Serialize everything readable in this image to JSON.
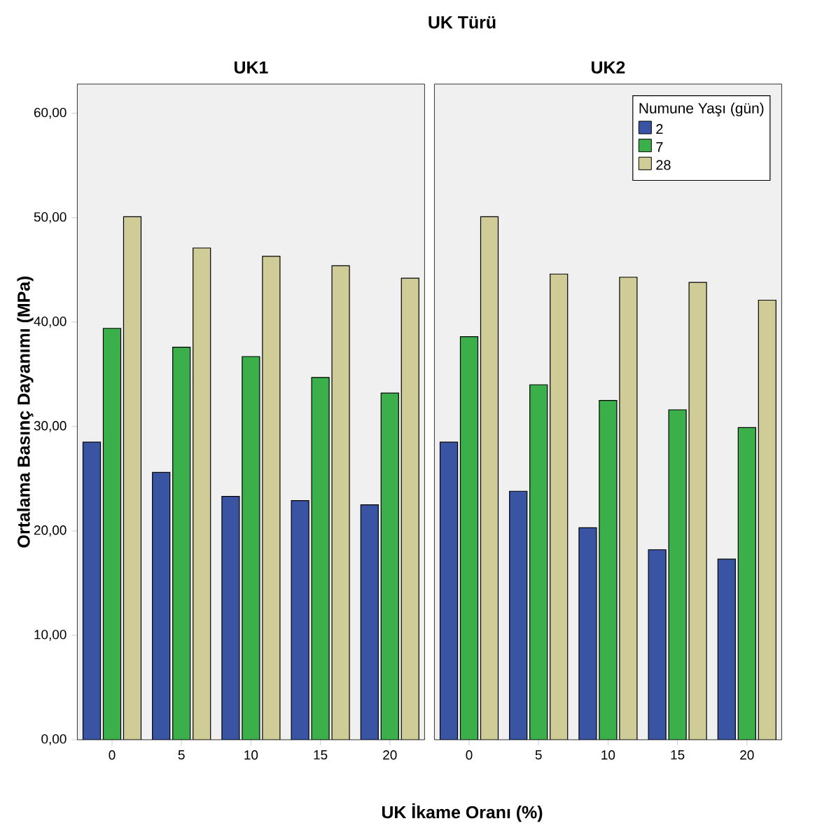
{
  "chart_data": [
    {
      "type": "bar",
      "title": "UK1",
      "annotations": [
        "UK Türü"
      ],
      "xlabel": "UK İkame Oranı (%)",
      "ylabel": "Ortalama Basınç Dayanımı (MPa)",
      "categories": [
        "0",
        "5",
        "10",
        "15",
        "20"
      ],
      "series": [
        {
          "color": "#3a54a4",
          "values": [
            28.5,
            25.6,
            23.3,
            22.9,
            22.5
          ]
        },
        {
          "color": "#3bb04a",
          "values": [
            39.4,
            37.6,
            36.7,
            34.7,
            33.2
          ]
        },
        {
          "color": "#d0cc98",
          "values": [
            50.1,
            47.1,
            46.3,
            45.4,
            44.2
          ]
        }
      ],
      "ylim": [
        0,
        62.8
      ],
      "yticks": [
        {
          "value": 0,
          "label": "0,00"
        },
        {
          "value": 10,
          "label": "10,00"
        },
        {
          "value": 20,
          "label": "20,00"
        },
        {
          "value": 30,
          "label": "30,00"
        },
        {
          "value": 40,
          "label": "40,00"
        },
        {
          "value": 50,
          "label": "50,00"
        },
        {
          "value": 60,
          "label": "60,00"
        }
      ],
      "legend": false
    },
    {
      "type": "bar",
      "title": "UK2",
      "legend_title": "Numune Yaşı (gün)",
      "categories": [
        "0",
        "5",
        "10",
        "15",
        "20"
      ],
      "series": [
        {
          "name": "2",
          "color": "#3a54a4",
          "values": [
            28.5,
            23.8,
            20.3,
            18.2,
            17.3
          ]
        },
        {
          "name": "7",
          "color": "#3bb04a",
          "values": [
            38.6,
            34.0,
            32.5,
            31.6,
            29.9
          ]
        },
        {
          "name": "28",
          "color": "#d0cc98",
          "values": [
            50.1,
            44.6,
            44.3,
            43.8,
            42.1
          ]
        }
      ],
      "ylim": [
        0,
        62.8
      ],
      "tick_labels": "x",
      "legend": "top right"
    }
  ]
}
